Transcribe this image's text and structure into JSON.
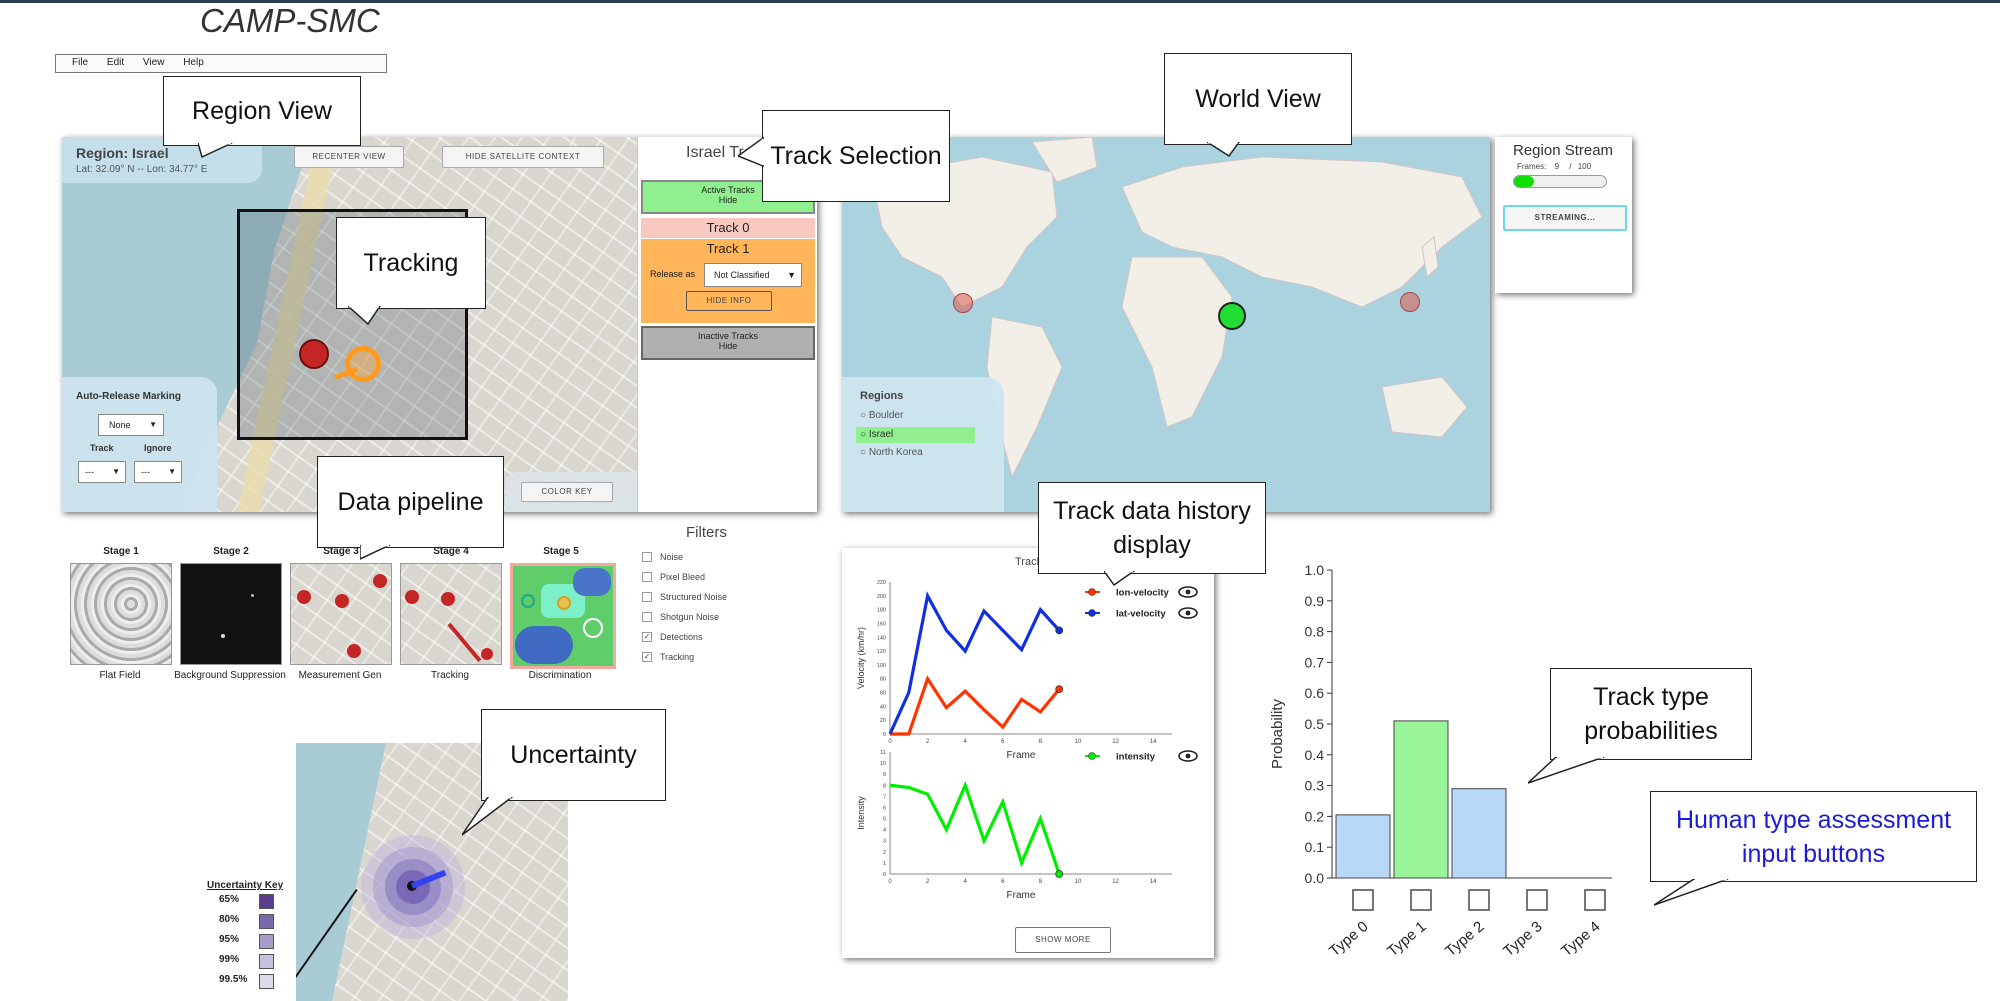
{
  "app_title": "CAMP-SMC",
  "menu": [
    "File",
    "Edit",
    "View",
    "Help"
  ],
  "region_view": {
    "region_label": "Region: Israel",
    "coords": "Lat: 32.09° N -- Lon: 34.77° E",
    "recenter_btn": "RECENTER VIEW",
    "hide_sat_btn": "HIDE SATELLITE CONTEXT",
    "auto_release": {
      "title": "Auto-Release Marking",
      "value": "None",
      "track_label": "Track",
      "ignore_label": "Ignore",
      "track_value": "---",
      "ignore_value": "---"
    },
    "color_key_btn": "COLOR KEY"
  },
  "track_panel": {
    "title": "Israel Tracks",
    "active_label": "Active Tracks",
    "active_hide": "Hide",
    "track0": "Track 0",
    "track1": "Track 1",
    "release_as": "Release as",
    "release_value": "Not Classified",
    "hide_info": "HIDE INFO",
    "inactive_label": "Inactive Tracks",
    "inactive_hide": "Hide"
  },
  "world_view": {
    "regions_title": "Regions",
    "regions": [
      "Boulder",
      "Israel",
      "North Korea"
    ],
    "selected_region": "Israel"
  },
  "region_stream": {
    "title": "Region Stream",
    "frames_label": "Frames:",
    "frame_current": "9",
    "frame_sep": "/",
    "frame_total": "100",
    "progress": 0.09,
    "streaming_btn": "STREAMING..."
  },
  "pipeline": {
    "stages": [
      {
        "label": "Stage 1",
        "caption": "Flat Field"
      },
      {
        "label": "Stage 2",
        "caption": "Background Suppression"
      },
      {
        "label": "Stage 3",
        "caption": "Measurement Gen"
      },
      {
        "label": "Stage 4",
        "caption": "Tracking"
      },
      {
        "label": "Stage 5",
        "caption": "Discrimination"
      }
    ],
    "filters_title": "Filters",
    "filters": [
      {
        "label": "Noise",
        "checked": false
      },
      {
        "label": "Pixel Bleed",
        "checked": false
      },
      {
        "label": "Structured Noise",
        "checked": false
      },
      {
        "label": "Shotgun Noise",
        "checked": false
      },
      {
        "label": "Detections",
        "checked": true
      },
      {
        "label": "Tracking",
        "checked": true
      }
    ]
  },
  "uncertainty_key": {
    "title": "Uncertainty Key",
    "levels": [
      {
        "label": "65%",
        "color": "#5b3c8f"
      },
      {
        "label": "80%",
        "color": "#7a68ad"
      },
      {
        "label": "95%",
        "color": "#a69cc7"
      },
      {
        "label": "99%",
        "color": "#c8c0dc"
      },
      {
        "label": "99.5%",
        "color": "#dedaea"
      }
    ]
  },
  "history": {
    "title_partial": "Track",
    "show_more": "SHOW MORE"
  },
  "chart_data": [
    {
      "type": "line",
      "xlabel": "Frame",
      "ylabel": "Velocity (km/hr)",
      "xlim": [
        0,
        15
      ],
      "ylim": [
        0,
        220
      ],
      "x_ticks": [
        0,
        2,
        4,
        6,
        8,
        10,
        12,
        14
      ],
      "y_ticks": [
        0,
        20,
        40,
        60,
        80,
        100,
        120,
        140,
        160,
        180,
        200,
        220
      ],
      "x": [
        0,
        1,
        2,
        3,
        4,
        5,
        6,
        7,
        8,
        9
      ],
      "series": [
        {
          "name": "lon-velocity",
          "color": "#ff3300",
          "values": [
            0,
            0,
            80,
            38,
            62,
            35,
            10,
            50,
            32,
            65
          ]
        },
        {
          "name": "lat-velocity",
          "color": "#1030e0",
          "values": [
            0,
            60,
            200,
            150,
            120,
            178,
            150,
            122,
            180,
            150
          ]
        }
      ]
    },
    {
      "type": "line",
      "xlabel": "Frame",
      "ylabel": "Intensity",
      "xlim": [
        0,
        15
      ],
      "ylim": [
        0,
        11
      ],
      "x_ticks": [
        0,
        2,
        4,
        6,
        8,
        10,
        12,
        14
      ],
      "y_ticks": [
        0,
        1,
        2,
        3,
        4,
        5,
        6,
        7,
        8,
        9,
        10,
        11
      ],
      "x": [
        0,
        1,
        2,
        3,
        4,
        5,
        6,
        7,
        8,
        9
      ],
      "series": [
        {
          "name": "intensity",
          "color": "#00ee00",
          "values": [
            8,
            7.8,
            7.2,
            4,
            8,
            3,
            6.5,
            1,
            5,
            0
          ]
        }
      ]
    },
    {
      "type": "bar",
      "ylabel": "Probability",
      "ylim": [
        0,
        1
      ],
      "y_ticks": [
        "0.0",
        "0.1",
        "0.2",
        "0.3",
        "0.4",
        "0.5",
        "0.6",
        "0.7",
        "0.8",
        "0.9",
        "1.0"
      ],
      "categories": [
        "Type 0",
        "Type 1",
        "Type 2",
        "Type 3",
        "Type 4"
      ],
      "values": [
        0.205,
        0.51,
        0.29,
        0,
        0
      ],
      "colors": [
        "#b8d8f8",
        "#9af59a",
        "#b8d8f8",
        "#b8d8f8",
        "#b8d8f8"
      ]
    }
  ],
  "callouts": {
    "region_view": "Region View",
    "track_selection": "Track Selection",
    "world_view": "World View",
    "tracking": "Tracking",
    "data_pipeline": "Data pipeline",
    "track_history": "Track  data history display",
    "uncertainty": "Uncertainty",
    "type_probs": "Track type probabilities",
    "human_input": "Human type assessment input buttons"
  },
  "colors": {
    "active_tracks": "#90f090",
    "track0": "#f7c7c0",
    "track1": "#ffb55a",
    "inactive": "#b0b0b0",
    "human_input_text": "#1b1bd6"
  }
}
